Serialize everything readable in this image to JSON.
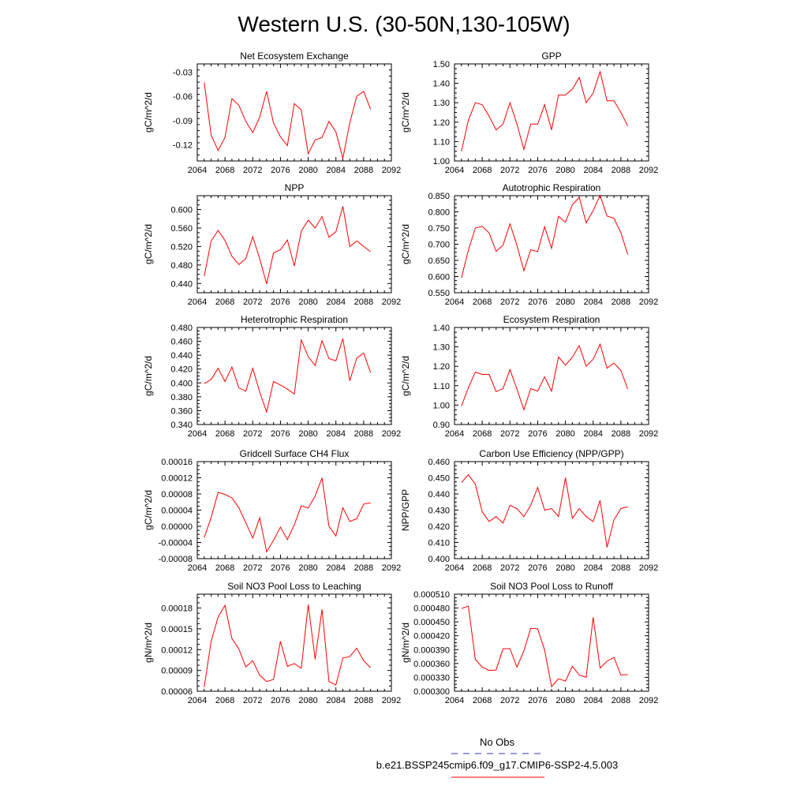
{
  "page": {
    "title": "Western U.S. (30-50N,130-105W)"
  },
  "legend": {
    "items": [
      {
        "label": "No Obs",
        "color": "#3333cc",
        "dashed": true
      },
      {
        "label": "b.e21.BSSP245cmip6.f09_g17.CMIP6-SSP2-4.5.003",
        "color": "#ff0000",
        "dashed": false
      }
    ]
  },
  "chart_data": [
    {
      "type": "line",
      "title": "Net Ecosystem Exchange",
      "ylabel": "gC/m^2/d",
      "xlim": [
        2064,
        2092
      ],
      "ylim": [
        -0.14,
        -0.02
      ],
      "xticks": [
        2064,
        2068,
        2072,
        2076,
        2080,
        2084,
        2088,
        2092
      ],
      "yticks": [
        -0.12,
        -0.09,
        -0.06,
        -0.03
      ],
      "ytick_labels": [
        "-0.12",
        "-0.09",
        "-0.06",
        "-0.03"
      ],
      "x": [
        2065,
        2066,
        2067,
        2068,
        2069,
        2070,
        2071,
        2072,
        2073,
        2074,
        2075,
        2076,
        2077,
        2078,
        2079,
        2080,
        2081,
        2082,
        2083,
        2084,
        2085,
        2086,
        2087,
        2088,
        2089
      ],
      "series": [
        {
          "color": "#ff0000",
          "values": [
            -0.043,
            -0.108,
            -0.127,
            -0.111,
            -0.063,
            -0.071,
            -0.091,
            -0.105,
            -0.086,
            -0.054,
            -0.093,
            -0.11,
            -0.121,
            -0.069,
            -0.077,
            -0.131,
            -0.114,
            -0.111,
            -0.091,
            -0.104,
            -0.137,
            -0.093,
            -0.06,
            -0.054,
            -0.076
          ]
        }
      ]
    },
    {
      "type": "line",
      "title": "GPP",
      "ylabel": "gC/m^2/d",
      "xlim": [
        2064,
        2092
      ],
      "ylim": [
        1.0,
        1.5
      ],
      "xticks": [
        2064,
        2068,
        2072,
        2076,
        2080,
        2084,
        2088,
        2092
      ],
      "yticks": [
        1.0,
        1.1,
        1.2,
        1.3,
        1.4,
        1.5
      ],
      "ytick_labels": [
        "1.00",
        "1.10",
        "1.20",
        "1.30",
        "1.40",
        "1.50"
      ],
      "x": [
        2065,
        2066,
        2067,
        2068,
        2069,
        2070,
        2071,
        2072,
        2073,
        2074,
        2075,
        2076,
        2077,
        2078,
        2079,
        2080,
        2081,
        2082,
        2083,
        2084,
        2085,
        2086,
        2087,
        2088,
        2089
      ],
      "series": [
        {
          "color": "#ff0000",
          "values": [
            1.05,
            1.21,
            1.3,
            1.29,
            1.23,
            1.16,
            1.19,
            1.3,
            1.19,
            1.06,
            1.19,
            1.19,
            1.29,
            1.16,
            1.34,
            1.34,
            1.37,
            1.43,
            1.3,
            1.35,
            1.46,
            1.31,
            1.31,
            1.25,
            1.18
          ]
        }
      ]
    },
    {
      "type": "line",
      "title": "NPP",
      "ylabel": "gC/m^2/d",
      "xlim": [
        2064,
        2092
      ],
      "ylim": [
        0.42,
        0.63
      ],
      "xticks": [
        2064,
        2068,
        2072,
        2076,
        2080,
        2084,
        2088,
        2092
      ],
      "yticks": [
        0.44,
        0.48,
        0.52,
        0.56,
        0.6
      ],
      "ytick_labels": [
        "0.440",
        "0.480",
        "0.520",
        "0.560",
        "0.600"
      ],
      "x": [
        2065,
        2066,
        2067,
        2068,
        2069,
        2070,
        2071,
        2072,
        2073,
        2074,
        2075,
        2076,
        2077,
        2078,
        2079,
        2080,
        2081,
        2082,
        2083,
        2084,
        2085,
        2086,
        2087,
        2088,
        2089
      ],
      "series": [
        {
          "color": "#ff0000",
          "values": [
            0.456,
            0.532,
            0.555,
            0.533,
            0.499,
            0.481,
            0.494,
            0.541,
            0.494,
            0.439,
            0.506,
            0.513,
            0.534,
            0.478,
            0.553,
            0.577,
            0.56,
            0.585,
            0.54,
            0.552,
            0.607,
            0.52,
            0.532,
            0.52,
            0.509
          ]
        }
      ]
    },
    {
      "type": "line",
      "title": "Autotrophic Respiration",
      "ylabel": "gC/m^2/d",
      "xlim": [
        2064,
        2092
      ],
      "ylim": [
        0.55,
        0.85
      ],
      "xticks": [
        2064,
        2068,
        2072,
        2076,
        2080,
        2084,
        2088,
        2092
      ],
      "yticks": [
        0.55,
        0.6,
        0.65,
        0.7,
        0.75,
        0.8,
        0.85
      ],
      "ytick_labels": [
        "0.550",
        "0.600",
        "0.650",
        "0.700",
        "0.750",
        "0.800",
        "0.850"
      ],
      "x": [
        2065,
        2066,
        2067,
        2068,
        2069,
        2070,
        2071,
        2072,
        2073,
        2074,
        2075,
        2076,
        2077,
        2078,
        2079,
        2080,
        2081,
        2082,
        2083,
        2084,
        2085,
        2086,
        2087,
        2088,
        2089
      ],
      "series": [
        {
          "color": "#ff0000",
          "values": [
            0.596,
            0.682,
            0.75,
            0.755,
            0.735,
            0.678,
            0.697,
            0.763,
            0.697,
            0.618,
            0.683,
            0.677,
            0.754,
            0.687,
            0.786,
            0.768,
            0.822,
            0.845,
            0.766,
            0.804,
            0.851,
            0.787,
            0.78,
            0.735,
            0.668
          ]
        }
      ]
    },
    {
      "type": "line",
      "title": "Heterotrophic Respiration",
      "ylabel": "gC/m^2/d",
      "xlim": [
        2064,
        2092
      ],
      "ylim": [
        0.34,
        0.48
      ],
      "xticks": [
        2064,
        2068,
        2072,
        2076,
        2080,
        2084,
        2088,
        2092
      ],
      "yticks": [
        0.34,
        0.36,
        0.38,
        0.4,
        0.42,
        0.44,
        0.46,
        0.48
      ],
      "ytick_labels": [
        "0.340",
        "0.360",
        "0.380",
        "0.400",
        "0.420",
        "0.440",
        "0.460",
        "0.480"
      ],
      "x": [
        2065,
        2066,
        2067,
        2068,
        2069,
        2070,
        2071,
        2072,
        2073,
        2074,
        2075,
        2076,
        2077,
        2078,
        2079,
        2080,
        2081,
        2082,
        2083,
        2084,
        2085,
        2086,
        2087,
        2088,
        2089
      ],
      "series": [
        {
          "color": "#ff0000",
          "values": [
            0.399,
            0.405,
            0.421,
            0.402,
            0.423,
            0.393,
            0.388,
            0.421,
            0.387,
            0.358,
            0.402,
            0.397,
            0.391,
            0.384,
            0.462,
            0.438,
            0.425,
            0.461,
            0.435,
            0.432,
            0.464,
            0.403,
            0.436,
            0.443,
            0.415
          ]
        }
      ]
    },
    {
      "type": "line",
      "title": "Ecosystem Respiration",
      "ylabel": "gC/m^2/d",
      "xlim": [
        2064,
        2092
      ],
      "ylim": [
        0.9,
        1.4
      ],
      "xticks": [
        2064,
        2068,
        2072,
        2076,
        2080,
        2084,
        2088,
        2092
      ],
      "yticks": [
        0.9,
        1.0,
        1.1,
        1.2,
        1.3,
        1.4
      ],
      "ytick_labels": [
        "0.90",
        "1.00",
        "1.10",
        "1.20",
        "1.30",
        "1.40"
      ],
      "x": [
        2065,
        2066,
        2067,
        2068,
        2069,
        2070,
        2071,
        2072,
        2073,
        2074,
        2075,
        2076,
        2077,
        2078,
        2079,
        2080,
        2081,
        2082,
        2083,
        2084,
        2085,
        2086,
        2087,
        2088,
        2089
      ],
      "series": [
        {
          "color": "#ff0000",
          "values": [
            0.995,
            1.09,
            1.17,
            1.158,
            1.158,
            1.07,
            1.085,
            1.183,
            1.083,
            0.976,
            1.085,
            1.072,
            1.145,
            1.071,
            1.248,
            1.206,
            1.247,
            1.306,
            1.2,
            1.236,
            1.314,
            1.19,
            1.217,
            1.178,
            1.083
          ]
        }
      ]
    },
    {
      "type": "line",
      "title": "Gridcell Surface CH4 Flux",
      "ylabel": "gC/m^2/d",
      "xlim": [
        2064,
        2092
      ],
      "ylim": [
        -8e-05,
        0.00016
      ],
      "xticks": [
        2064,
        2068,
        2072,
        2076,
        2080,
        2084,
        2088,
        2092
      ],
      "yticks": [
        -8e-05,
        -4e-05,
        0.0,
        4e-05,
        8e-05,
        0.00012,
        0.00016
      ],
      "ytick_labels": [
        "-0.00008",
        "-0.00004",
        "0.00000",
        "0.00004",
        "0.00008",
        "0.00012",
        "0.00016"
      ],
      "x": [
        2065,
        2066,
        2067,
        2068,
        2069,
        2070,
        2071,
        2072,
        2073,
        2074,
        2075,
        2076,
        2077,
        2078,
        2079,
        2080,
        2081,
        2082,
        2083,
        2084,
        2085,
        2086,
        2087,
        2088,
        2089
      ],
      "series": [
        {
          "color": "#ff0000",
          "values": [
            -2.8e-05,
            2.2e-05,
            8.4e-05,
            7.9e-05,
            7e-05,
            4.6e-05,
            9e-06,
            -2.9e-05,
            2.1e-05,
            -6.3e-05,
            -3.5e-05,
            -2e-06,
            -3.3e-05,
            4e-06,
            5.1e-05,
            4.5e-05,
            7.5e-05,
            0.00012,
            0.0,
            -2.4e-05,
            4.6e-05,
            1.2e-05,
            1.9e-05,
            5.5e-05,
            5.8e-05
          ]
        }
      ]
    },
    {
      "type": "line",
      "title": "Carbon Use Efficiency (NPP/GPP)",
      "ylabel": "NPP/GPP",
      "xlim": [
        2064,
        2092
      ],
      "ylim": [
        0.4,
        0.46
      ],
      "xticks": [
        2064,
        2068,
        2072,
        2076,
        2080,
        2084,
        2088,
        2092
      ],
      "yticks": [
        0.4,
        0.41,
        0.42,
        0.43,
        0.44,
        0.45,
        0.46
      ],
      "ytick_labels": [
        "0.400",
        "0.410",
        "0.420",
        "0.430",
        "0.440",
        "0.450",
        "0.460"
      ],
      "x": [
        2065,
        2066,
        2067,
        2068,
        2069,
        2070,
        2071,
        2072,
        2073,
        2074,
        2075,
        2076,
        2077,
        2078,
        2079,
        2080,
        2081,
        2082,
        2083,
        2084,
        2085,
        2086,
        2087,
        2088,
        2089
      ],
      "series": [
        {
          "color": "#ff0000",
          "values": [
            0.447,
            0.452,
            0.446,
            0.429,
            0.423,
            0.426,
            0.422,
            0.433,
            0.431,
            0.426,
            0.433,
            0.444,
            0.43,
            0.431,
            0.426,
            0.45,
            0.425,
            0.431,
            0.426,
            0.423,
            0.436,
            0.407,
            0.424,
            0.431,
            0.432
          ]
        }
      ]
    },
    {
      "type": "line",
      "title": "Soil NO3 Pool Loss to Leaching",
      "ylabel": "gN/m^2/d",
      "xlim": [
        2064,
        2092
      ],
      "ylim": [
        6e-05,
        0.0002
      ],
      "xticks": [
        2064,
        2068,
        2072,
        2076,
        2080,
        2084,
        2088,
        2092
      ],
      "yticks": [
        6e-05,
        9e-05,
        0.00012,
        0.00015,
        0.00018
      ],
      "ytick_labels": [
        "0.00006",
        "0.00009",
        "0.00012",
        "0.00015",
        "0.00018"
      ],
      "x": [
        2065,
        2066,
        2067,
        2068,
        2069,
        2070,
        2071,
        2072,
        2073,
        2074,
        2075,
        2076,
        2077,
        2078,
        2079,
        2080,
        2081,
        2082,
        2083,
        2084,
        2085,
        2086,
        2087,
        2088,
        2089
      ],
      "series": [
        {
          "color": "#ff0000",
          "values": [
            6.6e-05,
            0.000132,
            0.000167,
            0.000184,
            0.000136,
            0.000121,
            9.5e-05,
            0.000104,
            8.3e-05,
            7.4e-05,
            7.7e-05,
            0.000132,
            9.6e-05,
            0.0001,
            9.3e-05,
            0.000185,
            0.000106,
            0.000178,
            7.4e-05,
            6.9e-05,
            0.000108,
            0.00011,
            0.000122,
            0.000104,
            9.4e-05
          ]
        }
      ]
    },
    {
      "type": "line",
      "title": "Soil NO3 Pool Loss to Runoff",
      "ylabel": "gN/m^2/d",
      "xlim": [
        2064,
        2092
      ],
      "ylim": [
        0.0003,
        0.00051
      ],
      "xticks": [
        2064,
        2068,
        2072,
        2076,
        2080,
        2084,
        2088,
        2092
      ],
      "yticks": [
        0.0003,
        0.00033,
        0.00036,
        0.00039,
        0.00042,
        0.00045,
        0.00048,
        0.00051
      ],
      "ytick_labels": [
        "0.000300",
        "0.000330",
        "0.000360",
        "0.000390",
        "0.000420",
        "0.000450",
        "0.000480",
        "0.000510"
      ],
      "x": [
        2065,
        2066,
        2067,
        2068,
        2069,
        2070,
        2071,
        2072,
        2073,
        2074,
        2075,
        2076,
        2077,
        2078,
        2079,
        2080,
        2081,
        2082,
        2083,
        2084,
        2085,
        2086,
        2087,
        2088,
        2089
      ],
      "series": [
        {
          "color": "#ff0000",
          "values": [
            0.000479,
            0.000484,
            0.000369,
            0.000352,
            0.000345,
            0.000346,
            0.000392,
            0.000392,
            0.000352,
            0.000387,
            0.000436,
            0.000435,
            0.000389,
            0.00031,
            0.000327,
            0.000322,
            0.000354,
            0.000335,
            0.00033,
            0.00046,
            0.00035,
            0.000365,
            0.000373,
            0.000335,
            0.000336
          ]
        }
      ]
    }
  ]
}
